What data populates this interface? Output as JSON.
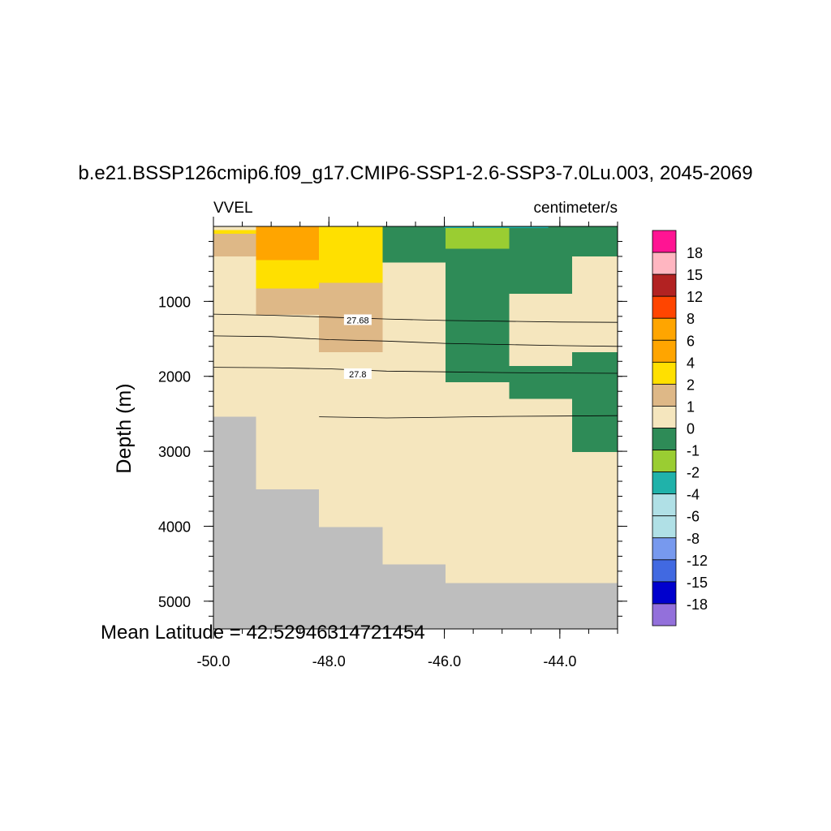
{
  "title": "b.e21.BSSP126cmip6.f09_g17.CMIP6-SSP1-2.6-SSP3-7.0Lu.003, 2045-2069",
  "left_string": "VVEL",
  "right_string": "centimeter/s",
  "footnote": "Mean Latitude = 42.52946314721454",
  "chart_data": {
    "type": "heatmap",
    "title": "b.e21.BSSP126cmip6.f09_g17.CMIP6-SSP1-2.6-SSP3-7.0Lu.003, 2045-2069",
    "xlabel": "",
    "ylabel": "Depth (m)",
    "xlim": [
      -50.0,
      -43.0
    ],
    "ylim": [
      5370,
      0
    ],
    "y_reversed": true,
    "x_ticks": [
      -50.0,
      -48.0,
      -46.0,
      -44.0
    ],
    "x_tick_labels": [
      "-50.0",
      "-48.0",
      "-46.0",
      "-44.0"
    ],
    "y_ticks": [
      1000,
      2000,
      3000,
      4000,
      5000
    ],
    "y_tick_labels": [
      "1000",
      "2000",
      "3000",
      "4000",
      "5000"
    ],
    "missing_color": "#bebebe",
    "colorbar": {
      "labels": [
        "18",
        "15",
        "12",
        "8",
        "6",
        "4",
        "2",
        "1",
        "0",
        "-1",
        "-2",
        "-4",
        "-6",
        "-8",
        "-12",
        "-15",
        "-18"
      ],
      "colors": [
        "#ff1493",
        "#ffb6c1",
        "#b22222",
        "#ff4500",
        "#ffa500",
        "#ffa500",
        "#ffe000",
        "#deb887",
        "#f5e6be",
        "#2e8b57",
        "#9acd32",
        "#20b2aa",
        "#b0e0e6",
        "#b0e0e6",
        "#7799ee",
        "#4169e1",
        "#0000cd",
        "#9370db"
      ]
    },
    "columns_lon": [
      -49.65,
      -48.55,
      -47.45,
      -46.35,
      -45.25,
      -44.15,
      -43.05
    ],
    "cells": [
      {
        "lon": [
          -50.0,
          -49.26
        ],
        "depth": [
          0,
          50
        ],
        "value": 0
      },
      {
        "lon": [
          -50.0,
          -49.26
        ],
        "depth": [
          50,
          100
        ],
        "value": 2.5
      },
      {
        "lon": [
          -50.0,
          -49.26
        ],
        "depth": [
          100,
          400
        ],
        "value": 1.5
      },
      {
        "lon": [
          -50.0,
          -49.26
        ],
        "depth": [
          400,
          2540
        ],
        "value": 0.5
      },
      {
        "lon": [
          -49.26,
          -48.17
        ],
        "depth": [
          0,
          450
        ],
        "value": 5
      },
      {
        "lon": [
          -49.26,
          -48.17
        ],
        "depth": [
          450,
          830
        ],
        "value": 3
      },
      {
        "lon": [
          -49.26,
          -48.17
        ],
        "depth": [
          830,
          1180
        ],
        "value": 1.5
      },
      {
        "lon": [
          -49.26,
          -48.17
        ],
        "depth": [
          1180,
          3510
        ],
        "value": 0.5
      },
      {
        "lon": [
          -48.17,
          -47.07
        ],
        "depth": [
          0,
          750
        ],
        "value": 3
      },
      {
        "lon": [
          -48.17,
          -47.07
        ],
        "depth": [
          750,
          1680
        ],
        "value": 1.5
      },
      {
        "lon": [
          -48.17,
          -47.07
        ],
        "depth": [
          1680,
          4010
        ],
        "value": 0.5
      },
      {
        "lon": [
          -47.07,
          -45.98
        ],
        "depth": [
          0,
          480
        ],
        "value": -0.5
      },
      {
        "lon": [
          -47.07,
          -45.98
        ],
        "depth": [
          480,
          4510
        ],
        "value": 0.5
      },
      {
        "lon": [
          -45.98,
          -44.88
        ],
        "depth": [
          0,
          300
        ],
        "value": -1.5
      },
      {
        "lon": [
          -45.98,
          -44.88
        ],
        "depth": [
          300,
          2080
        ],
        "value": -0.5
      },
      {
        "lon": [
          -45.98,
          -44.88
        ],
        "depth": [
          2080,
          4760
        ],
        "value": 0.5
      },
      {
        "lon": [
          -44.88,
          -43.79
        ],
        "depth": [
          0,
          900
        ],
        "value": -0.5
      },
      {
        "lon": [
          -44.88,
          -43.79
        ],
        "depth": [
          900,
          1860
        ],
        "value": 0.5
      },
      {
        "lon": [
          -44.88,
          -43.79
        ],
        "depth": [
          1860,
          2300
        ],
        "value": -0.5
      },
      {
        "lon": [
          -44.88,
          -43.79
        ],
        "depth": [
          2300,
          4760
        ],
        "value": 0.5
      },
      {
        "lon": [
          -43.79,
          -43.0
        ],
        "depth": [
          0,
          400
        ],
        "value": -0.5
      },
      {
        "lon": [
          -43.79,
          -43.0
        ],
        "depth": [
          400,
          1680
        ],
        "value": 0.5
      },
      {
        "lon": [
          -43.79,
          -43.0
        ],
        "depth": [
          1680,
          3010
        ],
        "value": -0.5
      },
      {
        "lon": [
          -43.79,
          -43.0
        ],
        "depth": [
          3010,
          4760
        ],
        "value": 0.5
      }
    ],
    "seafloor_depth": [
      2540,
      3510,
      4010,
      4510,
      4760,
      4760,
      4760
    ],
    "contours": [
      {
        "label": "",
        "lon": [
          -50.0,
          -49.0,
          -48.0,
          -47.0,
          -46.0,
          -45.0,
          -44.0,
          -43.0
        ],
        "depth": [
          1170,
          1185,
          1210,
          1235,
          1255,
          1265,
          1275,
          1280
        ]
      },
      {
        "label": "27.68",
        "label_lon": -47.5,
        "label_depth": 1250,
        "lon": [
          -50.0,
          -49.0,
          -48.0,
          -47.0,
          -46.0,
          -45.0,
          -44.0,
          -43.0
        ],
        "depth": [
          1460,
          1470,
          1510,
          1530,
          1560,
          1575,
          1590,
          1600
        ]
      },
      {
        "label": "27.8",
        "label_lon": -47.5,
        "label_depth": 1970,
        "lon": [
          -50.0,
          -49.0,
          -48.0,
          -47.0,
          -46.0,
          -45.0,
          -44.0,
          -43.0
        ],
        "depth": [
          1880,
          1885,
          1900,
          1930,
          1940,
          1950,
          1955,
          1960
        ]
      },
      {
        "label": "",
        "lon": [
          -48.17,
          -47.0,
          -46.0,
          -45.0,
          -44.0,
          -43.0
        ],
        "depth": [
          2540,
          2555,
          2545,
          2535,
          2530,
          2525
        ]
      }
    ]
  }
}
